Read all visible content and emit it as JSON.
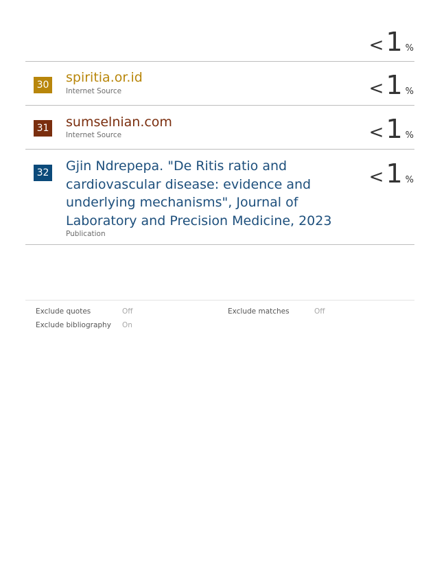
{
  "top_percentage": {
    "lt": "<",
    "value": "1",
    "sign": "%"
  },
  "sources": [
    {
      "number": "30",
      "title": "spiritia.or.id",
      "type": "Internet Source",
      "pct_lt": "<",
      "pct_value": "1",
      "pct_sign": "%",
      "badge_color": "#b8860b",
      "title_color": "#b8860b"
    },
    {
      "number": "31",
      "title": "sumselnian.com",
      "type": "Internet Source",
      "pct_lt": "<",
      "pct_value": "1",
      "pct_sign": "%",
      "badge_color": "#7a2e0e",
      "title_color": "#7a2e0e"
    },
    {
      "number": "32",
      "title": "Gjin Ndrepepa. \"De Ritis ratio and cardiovascular disease: evidence and underlying mechanisms\", Journal of Laboratory and Precision Medicine, 2023",
      "type": "Publication",
      "pct_lt": "<",
      "pct_value": "1",
      "pct_sign": "%",
      "badge_color": "#0b4a7a",
      "title_color": "#1d4f7c"
    }
  ],
  "exclusions": {
    "quotes_label": "Exclude quotes",
    "quotes_value": "Off",
    "bibliography_label": "Exclude bibliography",
    "bibliography_value": "On",
    "matches_label": "Exclude matches",
    "matches_value": "Off"
  }
}
